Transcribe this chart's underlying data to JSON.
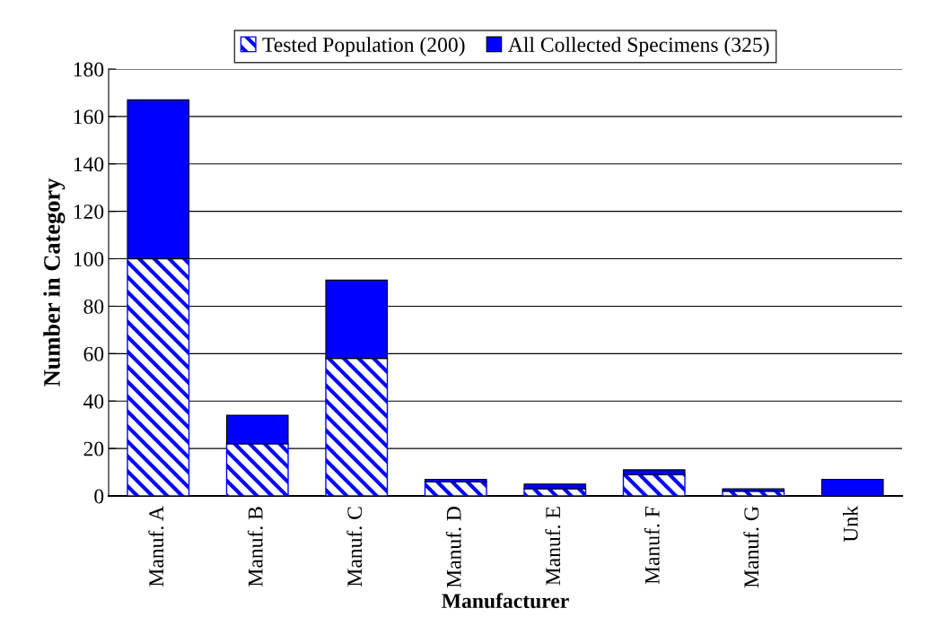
{
  "chart_data": {
    "type": "bar",
    "stacked": true,
    "xlabel": "Manufacturer",
    "ylabel": "Number in Category",
    "categories": [
      "Manuf. A",
      "Manuf. B",
      "Manuf. C",
      "Manuf. D",
      "Manuf. E",
      "Manuf. F",
      "Manuf. G",
      "Unk"
    ],
    "series": [
      {
        "name": "Tested Population (200)",
        "color": "#0000ff",
        "values": [
          100,
          22,
          58,
          6,
          3,
          9,
          2,
          0
        ]
      },
      {
        "name": "All Collected Specimens (325)",
        "color": "#0000ff",
        "values": [
          67,
          12,
          33,
          1,
          2,
          2,
          1,
          7
        ]
      }
    ],
    "ylim": [
      0,
      180
    ],
    "yticks": [
      0,
      20,
      40,
      60,
      80,
      100,
      120,
      140,
      160,
      180
    ],
    "grid": "y",
    "legend": "top"
  }
}
